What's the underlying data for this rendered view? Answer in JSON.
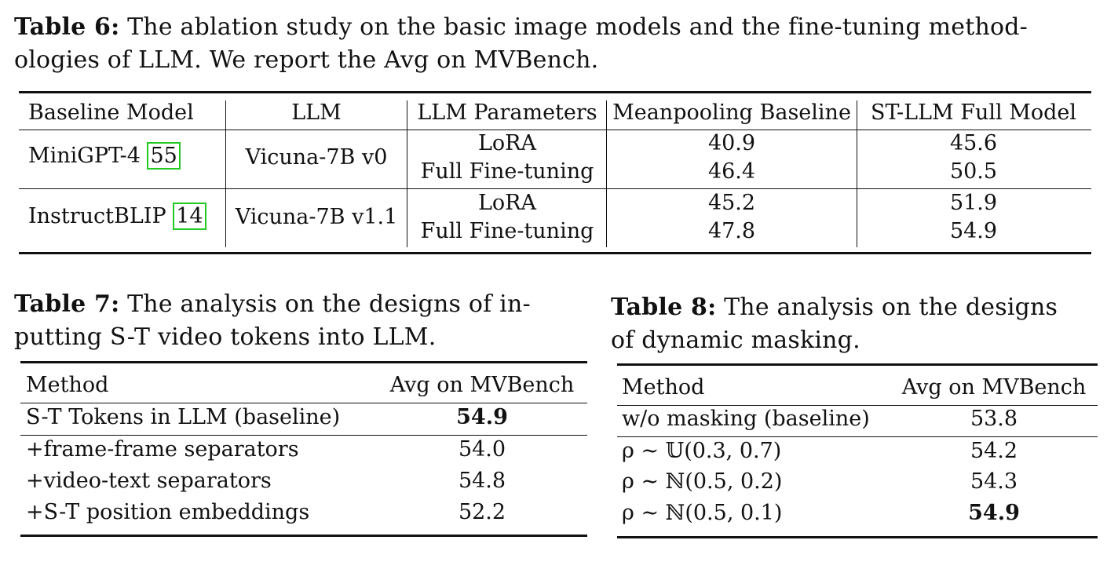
{
  "table6": {
    "caption_label": "Table 6:",
    "caption_text_line1": " The ablation study on the basic image models and the fine-tuning method-",
    "caption_text_line2": "ologies of LLM. We report the Avg on MVBench.",
    "headers": [
      "Baseline Model",
      "LLM",
      "LLM Parameters",
      "Meanpooling Baseline",
      "ST-LLM Full Model"
    ],
    "groups": [
      {
        "model": "MiniGPT-4",
        "ref": "55",
        "llm": "Vicuna-7B v0",
        "rows": [
          {
            "params": "LoRA",
            "meanpool": "40.9",
            "full": "45.6"
          },
          {
            "params": "Full Fine-tuning",
            "meanpool": "46.4",
            "full": "50.5"
          }
        ]
      },
      {
        "model": "InstructBLIP",
        "ref": "14",
        "llm": "Vicuna-7B v1.1",
        "rows": [
          {
            "params": "LoRA",
            "meanpool": "45.2",
            "full": "51.9"
          },
          {
            "params": "Full Fine-tuning",
            "meanpool": "47.8",
            "full": "54.9"
          }
        ]
      }
    ]
  },
  "table7": {
    "caption_label": "Table 7:",
    "caption_text_line1": " The analysis on the designs of in-",
    "caption_text_line2": "putting S-T video tokens into LLM.",
    "headers": [
      "Method",
      "Avg on MVBench"
    ],
    "rows": [
      {
        "method": "S-T Tokens in LLM (baseline)",
        "avg": "54.9",
        "bold": true
      },
      {
        "method": "+frame-frame separators",
        "avg": "54.0",
        "bold": false
      },
      {
        "method": "+video-text separators",
        "avg": "54.8",
        "bold": false
      },
      {
        "method": "+S-T position embeddings",
        "avg": "52.2",
        "bold": false
      }
    ]
  },
  "table8": {
    "caption_label": "Table 8:",
    "caption_text_line1": " The analysis on the designs",
    "caption_text_line2": "of dynamic masking.",
    "headers": [
      "Method",
      "Avg on MVBench"
    ],
    "rows": [
      {
        "method": "w/o masking (baseline)",
        "avg": "53.8",
        "bold": false
      },
      {
        "method": "ρ ∼ 𝕌(0.3, 0.7)",
        "avg": "54.2",
        "bold": false
      },
      {
        "method": "ρ ∼ ℕ(0.5, 0.2)",
        "avg": "54.3",
        "bold": false
      },
      {
        "method": "ρ ∼ ℕ(0.5, 0.1)",
        "avg": "54.9",
        "bold": true
      }
    ]
  }
}
